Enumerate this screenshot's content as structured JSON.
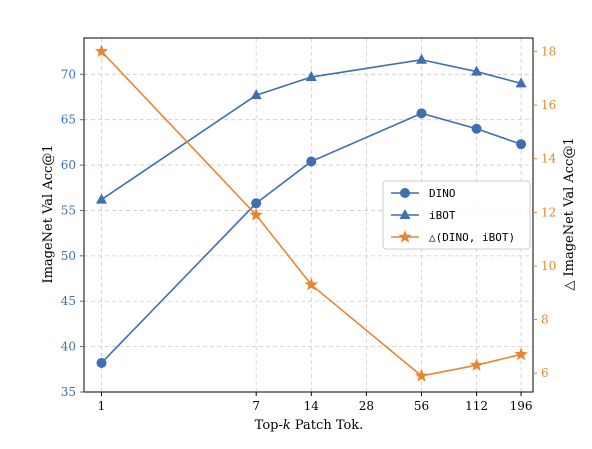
{
  "chart_data": {
    "type": "line",
    "xlabel": "Top-k Patch Tok.",
    "xlabel_parts": [
      "Top-",
      "k",
      " Patch Tok."
    ],
    "ylabel_left": "ImageNet Val Acc@1",
    "ylabel_right": "△ ImageNet Val Acc@1",
    "x_scale": "log",
    "x": [
      1,
      7,
      14,
      28,
      56,
      112,
      196
    ],
    "x_tick_labels": [
      "1",
      "7",
      "14",
      "28",
      "56",
      "112",
      "196"
    ],
    "ylim_left": [
      35,
      74
    ],
    "ylim_right": [
      5.3,
      18.5
    ],
    "yticks_left": [
      35,
      40,
      45,
      50,
      55,
      60,
      65,
      70
    ],
    "yticks_right": [
      6,
      8,
      10,
      12,
      14,
      16,
      18
    ],
    "grid": true,
    "legend_position": "center-right",
    "series": [
      {
        "name": "DINO",
        "axis": "left",
        "marker": "circle",
        "color": "#3e6fb0",
        "x": [
          1,
          7,
          14,
          56,
          112,
          196
        ],
        "values": [
          38.2,
          55.8,
          60.4,
          65.7,
          64.0,
          62.3
        ]
      },
      {
        "name": "iBOT",
        "axis": "left",
        "marker": "triangle",
        "color": "#3e6fb0",
        "x": [
          1,
          7,
          14,
          56,
          112,
          196
        ],
        "values": [
          56.2,
          67.7,
          69.7,
          71.6,
          70.3,
          69.0
        ]
      },
      {
        "name": "△(DINO, iBOT)",
        "axis": "right",
        "marker": "star",
        "color": "#e8862f",
        "x": [
          1,
          7,
          14,
          56,
          112,
          196
        ],
        "values": [
          18.0,
          11.9,
          9.3,
          5.9,
          6.3,
          6.7
        ]
      }
    ]
  }
}
